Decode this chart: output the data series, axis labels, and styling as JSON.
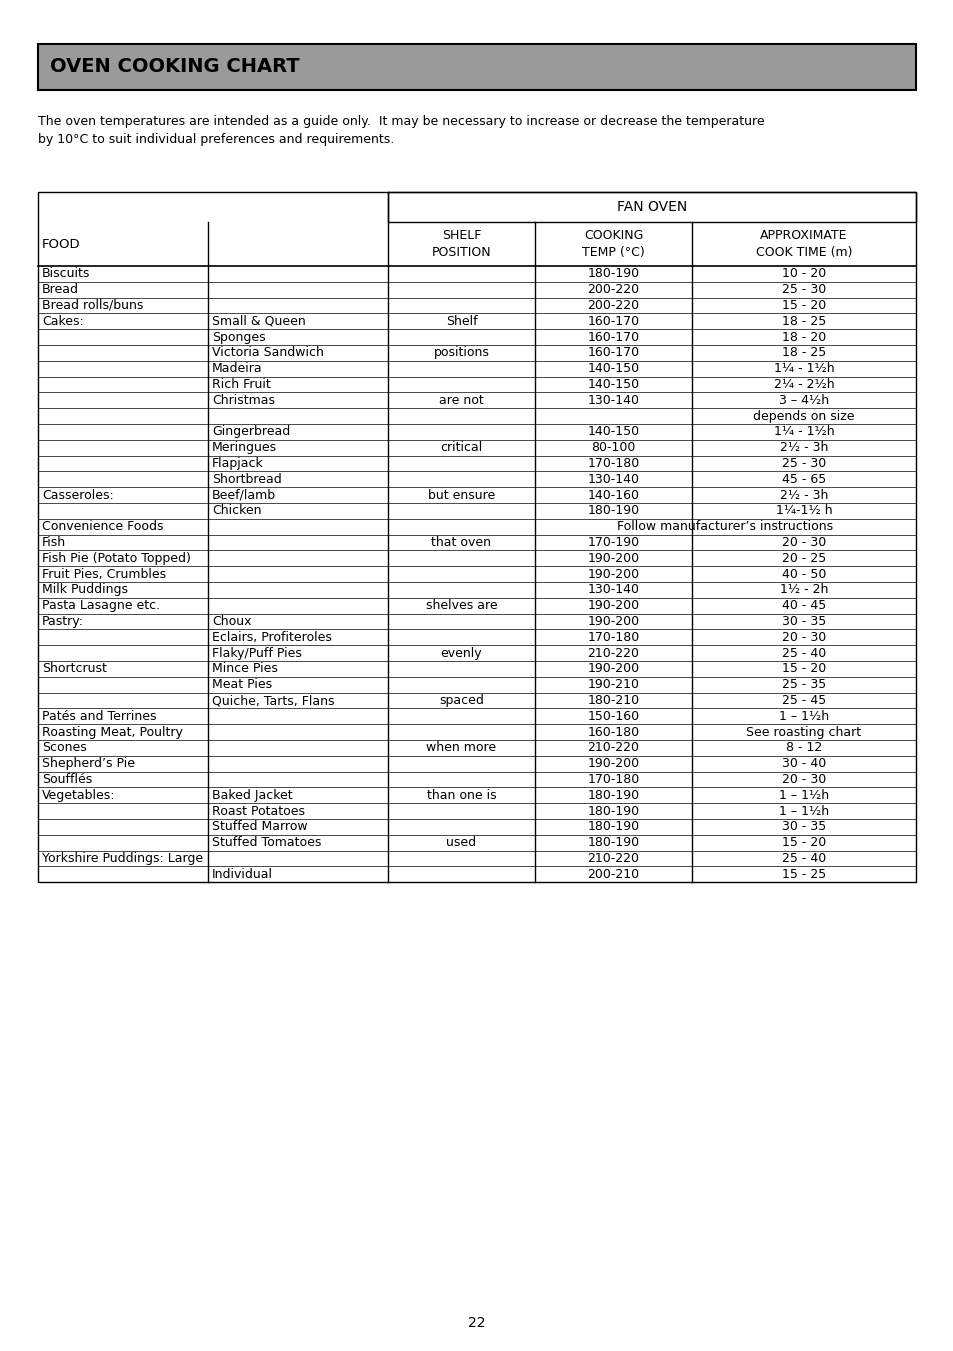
{
  "title": "OVEN COOKING CHART",
  "subtitle": "The oven temperatures are intended as a guide only.  It may be necessary to increase or decrease the temperature\nby 10°C to suit individual preferences and requirements.",
  "fan_oven_header": "FAN OVEN",
  "rows": [
    [
      "Biscuits",
      "",
      "",
      "180-190",
      "10 - 20"
    ],
    [
      "Bread",
      "",
      "",
      "200-220",
      "25 - 30"
    ],
    [
      "Bread rolls/buns",
      "",
      "",
      "200-220",
      "15 - 20"
    ],
    [
      "Cakes:",
      "Small & Queen",
      "Shelf",
      "160-170",
      "18 - 25"
    ],
    [
      "",
      "Sponges",
      "",
      "160-170",
      "18 - 20"
    ],
    [
      "",
      "Victoria Sandwich",
      "positions",
      "160-170",
      "18 - 25"
    ],
    [
      "",
      "Madeira",
      "",
      "140-150",
      "1¼ - 1½h"
    ],
    [
      "",
      "Rich Fruit",
      "",
      "140-150",
      "2¼ - 2½h"
    ],
    [
      "",
      "Christmas",
      "are not",
      "130-140",
      "3 – 4½h"
    ],
    [
      "",
      "",
      "",
      "",
      "depends on size"
    ],
    [
      "",
      "Gingerbread",
      "",
      "140-150",
      "1¼ - 1½h"
    ],
    [
      "",
      "Meringues",
      "critical",
      "80-100",
      "2½ - 3h"
    ],
    [
      "",
      "Flapjack",
      "",
      "170-180",
      "25 - 30"
    ],
    [
      "",
      "Shortbread",
      "",
      "130-140",
      "45 - 65"
    ],
    [
      "Casseroles:",
      "Beef/lamb",
      "but ensure",
      "140-160",
      "2½ - 3h"
    ],
    [
      "",
      "Chicken",
      "",
      "180-190",
      "1¼-1½ h"
    ],
    [
      "Convenience Foods",
      "",
      "",
      "Follow manufacturer’s instructions",
      ""
    ],
    [
      "Fish",
      "",
      "that oven",
      "170-190",
      "20 - 30"
    ],
    [
      "Fish Pie (Potato Topped)",
      "",
      "",
      "190-200",
      "20 - 25"
    ],
    [
      "Fruit Pies, Crumbles",
      "",
      "",
      "190-200",
      "40 - 50"
    ],
    [
      "Milk Puddings",
      "",
      "",
      "130-140",
      "1½ - 2h"
    ],
    [
      "Pasta Lasagne etc.",
      "",
      "shelves are",
      "190-200",
      "40 - 45"
    ],
    [
      "Pastry:",
      "Choux",
      "",
      "190-200",
      "30 - 35"
    ],
    [
      "",
      "Eclairs, Profiteroles",
      "",
      "170-180",
      "20 - 30"
    ],
    [
      "",
      "Flaky/Puff Pies",
      "evenly",
      "210-220",
      "25 - 40"
    ],
    [
      "Shortcrust",
      "Mince Pies",
      "",
      "190-200",
      "15 - 20"
    ],
    [
      "",
      "Meat Pies",
      "",
      "190-210",
      "25 - 35"
    ],
    [
      "",
      "Quiche, Tarts, Flans",
      "spaced",
      "180-210",
      "25 - 45"
    ],
    [
      "Patés and Terrines",
      "",
      "",
      "150-160",
      "1 – 1½h"
    ],
    [
      "Roasting Meat, Poultry",
      "",
      "",
      "160-180",
      "See roasting chart"
    ],
    [
      "Scones",
      "",
      "when more",
      "210-220",
      "8 - 12"
    ],
    [
      "Shepherd’s Pie",
      "",
      "",
      "190-200",
      "30 - 40"
    ],
    [
      "Soufflés",
      "",
      "",
      "170-180",
      "20 - 30"
    ],
    [
      "Vegetables:",
      "Baked Jacket",
      "than one is",
      "180-190",
      "1 – 1½h"
    ],
    [
      "",
      "Roast Potatoes",
      "",
      "180-190",
      "1 – 1½h"
    ],
    [
      "",
      "Stuffed Marrow",
      "",
      "180-190",
      "30 - 35"
    ],
    [
      "",
      "Stuffed Tomatoes",
      "used",
      "180-190",
      "15 - 20"
    ],
    [
      "Yorkshire Puddings: Large",
      "",
      "",
      "210-220",
      "25 - 40"
    ],
    [
      "",
      "Individual",
      "",
      "200-210",
      "15 - 25"
    ]
  ],
  "page_number": "22",
  "bg_color": "#ffffff",
  "header_bg": "#9a9a9a",
  "table_border_color": "#000000"
}
